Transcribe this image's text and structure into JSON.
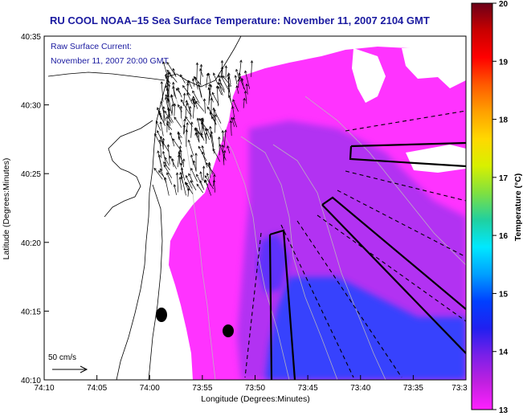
{
  "title": "RU COOL  NOAA–15  Sea Surface Temperature:  November 11, 2007 2104 GMT",
  "annotation": {
    "line1": "Raw Surface Current:",
    "line2": "November 11, 2007 20:00 GMT"
  },
  "scale_arrow_label": "50 cm/s",
  "x_axis": {
    "label": "Longitude (Degrees:Minutes)",
    "ticks": [
      "74:10",
      "74:05",
      "74:00",
      "73:55",
      "73:50",
      "73:45",
      "73:40",
      "73:35",
      "73:3"
    ]
  },
  "y_axis": {
    "label": "Latitude (Degrees:Minutes)",
    "ticks": [
      "40:35",
      "40:30",
      "40:25",
      "40:20",
      "40:15",
      "40:10"
    ]
  },
  "colorbar": {
    "label": "Temperature (°C)",
    "ticks": [
      "20",
      "19",
      "18",
      "17",
      "16",
      "15",
      "14",
      "13"
    ],
    "colors": [
      "#6b0018",
      "#c80000",
      "#ff0000",
      "#ff5a00",
      "#ffa000",
      "#ffd800",
      "#d8f000",
      "#80e040",
      "#20d0a0",
      "#00e8ff",
      "#00a0ff",
      "#0040ff",
      "#2020f0",
      "#7a20e8",
      "#c020e0",
      "#ff20ff"
    ]
  },
  "colors": {
    "title": "#1a1aa0",
    "sst_warm": "#ff33ff",
    "sst_mid": "#9933ee",
    "sst_cool": "#2244ff",
    "land": "#ffffff"
  }
}
